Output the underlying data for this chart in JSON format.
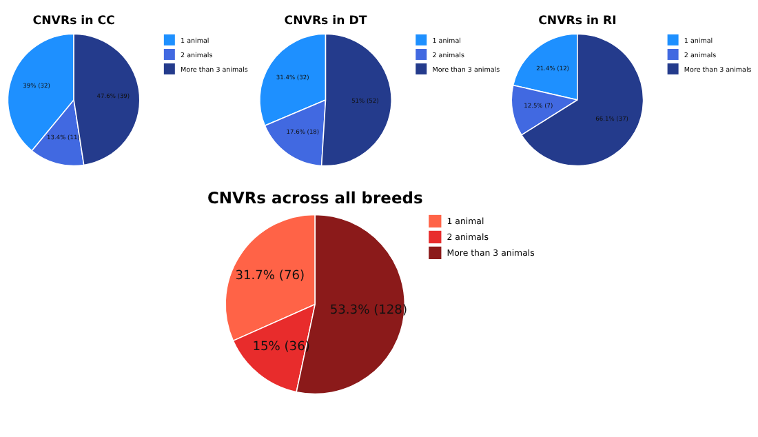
{
  "chart_data": [
    {
      "type": "pie",
      "title": "CNVRs in CC",
      "categories": [
        "1 animal",
        "2 animals",
        "More than 3 animals"
      ],
      "values": [
        32,
        11,
        39
      ],
      "colors": [
        "#1e90ff",
        "#4169e1",
        "#243b8c"
      ],
      "value_labels": [
        "39% (32)",
        "13.4% (11)",
        "47.6% (39)"
      ],
      "legend": "right"
    },
    {
      "type": "pie",
      "title": "CNVRs in DT",
      "categories": [
        "1 animal",
        "2 animals",
        "More than 3 animals"
      ],
      "values": [
        32,
        18,
        52
      ],
      "colors": [
        "#1e90ff",
        "#4169e1",
        "#243b8c"
      ],
      "value_labels": [
        "31.4% (32)",
        "17.6% (18)",
        "51% (52)"
      ],
      "legend": "right"
    },
    {
      "type": "pie",
      "title": "CNVRs in RI",
      "categories": [
        "1 animal",
        "2 animals",
        "More than 3 animals"
      ],
      "values": [
        12,
        7,
        37
      ],
      "colors": [
        "#1e90ff",
        "#4169e1",
        "#243b8c"
      ],
      "value_labels": [
        "21.4% (12)",
        "12.5% (7)",
        "66.1% (37)"
      ],
      "legend": "right"
    },
    {
      "type": "pie",
      "title": "CNVRs across all breeds",
      "categories": [
        "1 animal",
        "2 animals",
        "More than 3 animals"
      ],
      "values": [
        76,
        36,
        128
      ],
      "colors": [
        "#ff6347",
        "#e82c2c",
        "#8b1a1a"
      ],
      "value_labels": [
        "31.7% (76)",
        "15% (36)",
        "53.3% (128)"
      ],
      "legend": "right"
    }
  ]
}
